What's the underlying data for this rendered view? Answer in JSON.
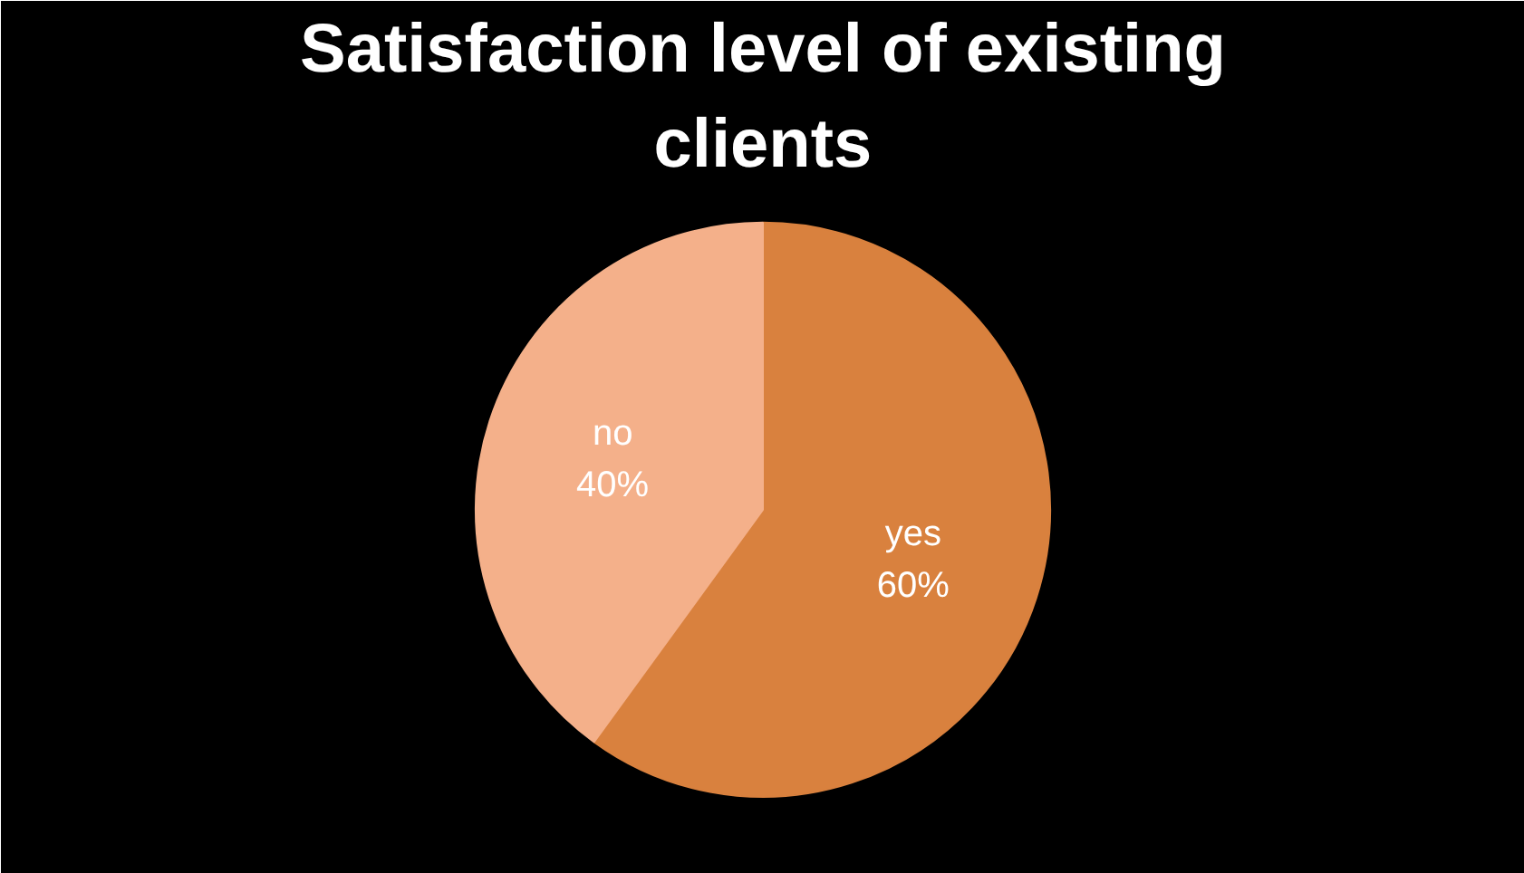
{
  "chart_data": {
    "type": "pie",
    "title": "Satisfaction level of existing clients",
    "categories": [
      "yes",
      "no"
    ],
    "values": [
      60,
      40
    ],
    "colors": [
      "#d9813e",
      "#f4b08a"
    ],
    "value_labels": [
      "60%",
      "40%"
    ]
  }
}
